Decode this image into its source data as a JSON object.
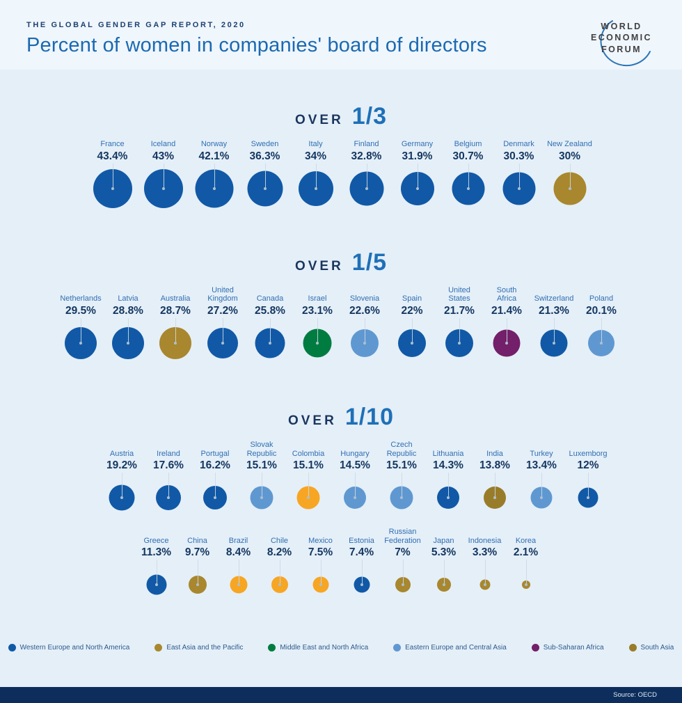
{
  "header": {
    "kicker": "THE GLOBAL GENDER GAP REPORT, 2020",
    "title": "Percent of women in companies' board of directors",
    "logo_lines": [
      "WORLD",
      "ECONOMIC",
      "FORUM"
    ]
  },
  "colors": {
    "western_europe_north_america": "#1159a6",
    "east_asia_pacific": "#a8872e",
    "middle_east_north_africa": "#007c41",
    "eastern_europe_central_asia": "#5f98d1",
    "sub_saharan_africa": "#731f69",
    "south_asia": "#997c2a",
    "latin_america": "#f7a623",
    "page_background": "#e5eff8",
    "header_background": "#eff6fc",
    "footer_background": "#0d2e5c",
    "title_blue": "#1b69b1",
    "heading_navy": "#1a365e",
    "fraction_blue": "#1e70b7",
    "country_label_blue": "#2f6fb2",
    "value_navy": "#13365f"
  },
  "legend": [
    {
      "label": "Western Europe and North America",
      "color_key": "western_europe_north_america"
    },
    {
      "label": "East Asia and the Pacific",
      "color_key": "east_asia_pacific"
    },
    {
      "label": "Middle East and North Africa",
      "color_key": "middle_east_north_africa"
    },
    {
      "label": "Eastern Europe and Central Asia",
      "color_key": "eastern_europe_central_asia"
    },
    {
      "label": "Sub-Saharan Africa",
      "color_key": "sub_saharan_africa"
    },
    {
      "label": "South Asia",
      "color_key": "south_asia"
    }
  ],
  "chart_data": {
    "type": "bubble",
    "title": "Percent of women in companies' board of directors",
    "subtitle": "THE GLOBAL GENDER GAP REPORT, 2020",
    "unit": "%",
    "size_encoding": "circle diameter proportional to sqrt of percentage",
    "source": "OECD",
    "sections": [
      {
        "heading_over": "OVER",
        "heading_fraction": "1/3",
        "rows": [
          [
            {
              "country": "France",
              "value": 43.4,
              "label": "43.4%",
              "region": "western_europe_north_america"
            },
            {
              "country": "Iceland",
              "value": 43,
              "label": "43%",
              "region": "western_europe_north_america"
            },
            {
              "country": "Norway",
              "value": 42.1,
              "label": "42.1%",
              "region": "western_europe_north_america"
            },
            {
              "country": "Sweden",
              "value": 36.3,
              "label": "36.3%",
              "region": "western_europe_north_america"
            },
            {
              "country": "Italy",
              "value": 34,
              "label": "34%",
              "region": "western_europe_north_america"
            },
            {
              "country": "Finland",
              "value": 32.8,
              "label": "32.8%",
              "region": "western_europe_north_america"
            },
            {
              "country": "Germany",
              "value": 31.9,
              "label": "31.9%",
              "region": "western_europe_north_america"
            },
            {
              "country": "Belgium",
              "value": 30.7,
              "label": "30.7%",
              "region": "western_europe_north_america"
            },
            {
              "country": "Denmark",
              "value": 30.3,
              "label": "30.3%",
              "region": "western_europe_north_america"
            },
            {
              "country": "New Zealand",
              "value": 30,
              "label": "30%",
              "region": "east_asia_pacific"
            }
          ]
        ]
      },
      {
        "heading_over": "OVER",
        "heading_fraction": "1/5",
        "rows": [
          [
            {
              "country": "Netherlands",
              "value": 29.5,
              "label": "29.5%",
              "region": "western_europe_north_america"
            },
            {
              "country": "Latvia",
              "value": 28.8,
              "label": "28.8%",
              "region": "western_europe_north_america"
            },
            {
              "country": "Australia",
              "value": 28.7,
              "label": "28.7%",
              "region": "east_asia_pacific"
            },
            {
              "country": "United\nKingdom",
              "value": 27.2,
              "label": "27.2%",
              "region": "western_europe_north_america"
            },
            {
              "country": "Canada",
              "value": 25.8,
              "label": "25.8%",
              "region": "western_europe_north_america"
            },
            {
              "country": "Israel",
              "value": 23.1,
              "label": "23.1%",
              "region": "middle_east_north_africa"
            },
            {
              "country": "Slovenia",
              "value": 22.6,
              "label": "22.6%",
              "region": "eastern_europe_central_asia"
            },
            {
              "country": "Spain",
              "value": 22,
              "label": "22%",
              "region": "western_europe_north_america"
            },
            {
              "country": "United\nStates",
              "value": 21.7,
              "label": "21.7%",
              "region": "western_europe_north_america"
            },
            {
              "country": "South\nAfrica",
              "value": 21.4,
              "label": "21.4%",
              "region": "sub_saharan_africa"
            },
            {
              "country": "Switzerland",
              "value": 21.3,
              "label": "21.3%",
              "region": "western_europe_north_america"
            },
            {
              "country": "Poland",
              "value": 20.1,
              "label": "20.1%",
              "region": "eastern_europe_central_asia"
            }
          ]
        ]
      },
      {
        "heading_over": "OVER",
        "heading_fraction": "1/10",
        "rows": [
          [
            {
              "country": "Austria",
              "value": 19.2,
              "label": "19.2%",
              "region": "western_europe_north_america"
            },
            {
              "country": "Ireland",
              "value": 17.6,
              "label": "17.6%",
              "region": "western_europe_north_america"
            },
            {
              "country": "Portugal",
              "value": 16.2,
              "label": "16.2%",
              "region": "western_europe_north_america"
            },
            {
              "country": "Slovak\nRepublic",
              "value": 15.1,
              "label": "15.1%",
              "region": "eastern_europe_central_asia"
            },
            {
              "country": "Colombia",
              "value": 15.1,
              "label": "15.1%",
              "region": "latin_america"
            },
            {
              "country": "Hungary",
              "value": 14.5,
              "label": "14.5%",
              "region": "eastern_europe_central_asia"
            },
            {
              "country": "Czech\nRepublic",
              "value": 15.1,
              "label": "15.1%",
              "region": "eastern_europe_central_asia"
            },
            {
              "country": "Lithuania",
              "value": 14.3,
              "label": "14.3%",
              "region": "western_europe_north_america"
            },
            {
              "country": "India",
              "value": 13.8,
              "label": "13.8%",
              "region": "south_asia"
            },
            {
              "country": "Turkey",
              "value": 13.4,
              "label": "13.4%",
              "region": "eastern_europe_central_asia"
            },
            {
              "country": "Luxemborg",
              "value": 12,
              "label": "12%",
              "region": "western_europe_north_america"
            }
          ],
          [
            {
              "country": "Greece",
              "value": 11.3,
              "label": "11.3%",
              "region": "western_europe_north_america"
            },
            {
              "country": "China",
              "value": 9.7,
              "label": "9.7%",
              "region": "east_asia_pacific"
            },
            {
              "country": "Brazil",
              "value": 8.4,
              "label": "8.4%",
              "region": "latin_america"
            },
            {
              "country": "Chile",
              "value": 8.2,
              "label": "8.2%",
              "region": "latin_america"
            },
            {
              "country": "Mexico",
              "value": 7.5,
              "label": "7.5%",
              "region": "latin_america"
            },
            {
              "country": "Estonia",
              "value": 7.4,
              "label": "7.4%",
              "region": "western_europe_north_america"
            },
            {
              "country": "Russian\nFederation",
              "value": 7,
              "label": "7%",
              "region": "east_asia_pacific"
            },
            {
              "country": "Japan",
              "value": 5.3,
              "label": "5.3%",
              "region": "east_asia_pacific"
            },
            {
              "country": "Indonesia",
              "value": 3.3,
              "label": "3.3%",
              "region": "east_asia_pacific"
            },
            {
              "country": "Korea",
              "value": 2.1,
              "label": "2.1%",
              "region": "east_asia_pacific"
            }
          ]
        ]
      }
    ]
  },
  "footer": {
    "source": "Source: OECD"
  }
}
